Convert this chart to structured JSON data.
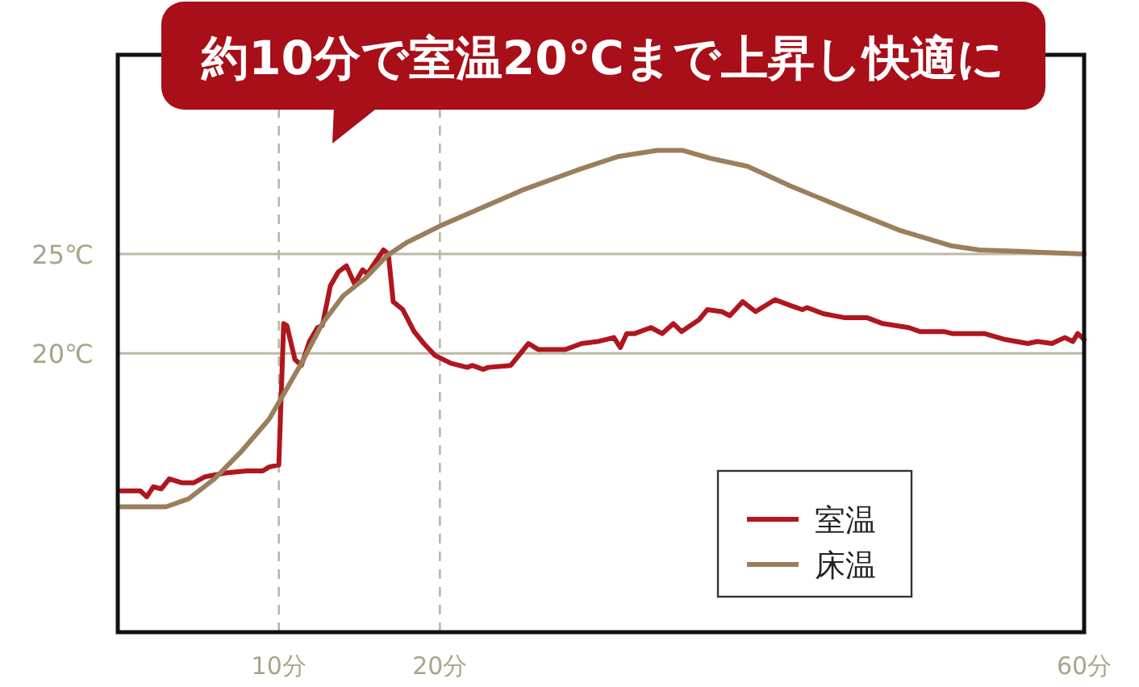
{
  "chart_data": {
    "type": "line",
    "title": "約10分で室温20℃まで上昇し快適に",
    "xlim": [
      0,
      60
    ],
    "ylim": [
      6,
      35
    ],
    "xticks": [
      {
        "value": 10,
        "label": "10分"
      },
      {
        "value": 20,
        "label": "20分"
      },
      {
        "value": 60,
        "label": "60分"
      }
    ],
    "yticks": [
      {
        "value": 20,
        "label": "20℃"
      },
      {
        "value": 25,
        "label": "25℃"
      }
    ],
    "grid": "y",
    "legend": "bottom right",
    "ref_lines": [
      {
        "axis": "x",
        "value": 10,
        "color": "#b5b29a",
        "line_style": "dashed"
      },
      {
        "axis": "x",
        "value": 20,
        "color": "#b5b29a",
        "line_style": "dashed"
      }
    ],
    "series": [
      {
        "name": "室温",
        "color": "#b0161e",
        "x": [
          0.2,
          1.4,
          1.8,
          2.2,
          2.7,
          3.2,
          4.0,
          4.7,
          5.4,
          6.7,
          8.0,
          9.0,
          9.4,
          10.0,
          10.3,
          10.5,
          11.0,
          11.4,
          11.9,
          12.4,
          12.7,
          13.2,
          13.7,
          14.2,
          14.7,
          15.2,
          15.5,
          16.0,
          16.5,
          16.8,
          17.1,
          17.7,
          18.4,
          19.0,
          19.7,
          20.7,
          21.7,
          22.0,
          22.7,
          23.0,
          24.4,
          25.5,
          26.1,
          27.8,
          28.8,
          29.8,
          30.8,
          31.2,
          31.6,
          32.1,
          33.1,
          33.8,
          34.5,
          35.0,
          36.1,
          36.6,
          37.5,
          38.0,
          38.8,
          39.6,
          40.8,
          41.8,
          42.5,
          42.8,
          43.8,
          45.1,
          46.5,
          47.5,
          49.1,
          49.8,
          51.3,
          51.8,
          52.8,
          53.8,
          55.1,
          56.5,
          57.1,
          58.0,
          58.8,
          59.3,
          59.6,
          60.0
        ],
        "values": [
          13.1,
          13.1,
          12.8,
          13.3,
          13.2,
          13.7,
          13.5,
          13.5,
          13.8,
          14.0,
          14.1,
          14.1,
          14.3,
          14.4,
          21.5,
          21.4,
          19.7,
          19.4,
          20.6,
          21.3,
          21.4,
          23.4,
          24.1,
          24.4,
          23.5,
          24.2,
          24.0,
          24.6,
          25.2,
          25.0,
          22.6,
          22.2,
          21.1,
          20.5,
          19.9,
          19.5,
          19.3,
          19.4,
          19.2,
          19.3,
          19.4,
          20.5,
          20.2,
          20.2,
          20.5,
          20.6,
          20.8,
          20.3,
          21.0,
          21.0,
          21.3,
          21.0,
          21.5,
          21.1,
          21.7,
          22.2,
          22.1,
          21.9,
          22.6,
          22.1,
          22.7,
          22.4,
          22.2,
          22.3,
          22.0,
          21.8,
          21.8,
          21.5,
          21.3,
          21.1,
          21.1,
          21.0,
          21.0,
          21.0,
          20.7,
          20.5,
          20.6,
          20.5,
          20.8,
          20.6,
          21.0,
          20.7
        ]
      },
      {
        "name": "床温",
        "color": "#9a7f5c",
        "x": [
          0.2,
          3.0,
          4.4,
          6.0,
          7.7,
          9.4,
          11.4,
          12.7,
          14.0,
          15.4,
          16.7,
          18.0,
          20.0,
          21.7,
          25.1,
          28.5,
          31.1,
          33.5,
          35.1,
          36.8,
          39.1,
          41.8,
          45.1,
          48.5,
          51.8,
          53.5,
          56.8,
          60.0
        ],
        "values": [
          12.3,
          12.3,
          12.7,
          13.7,
          15.1,
          16.7,
          19.5,
          21.5,
          22.9,
          23.8,
          24.9,
          25.6,
          26.4,
          27.0,
          28.2,
          29.2,
          29.9,
          30.2,
          30.2,
          29.8,
          29.4,
          28.4,
          27.3,
          26.2,
          25.4,
          25.2,
          25.1,
          25.0
        ]
      }
    ]
  }
}
